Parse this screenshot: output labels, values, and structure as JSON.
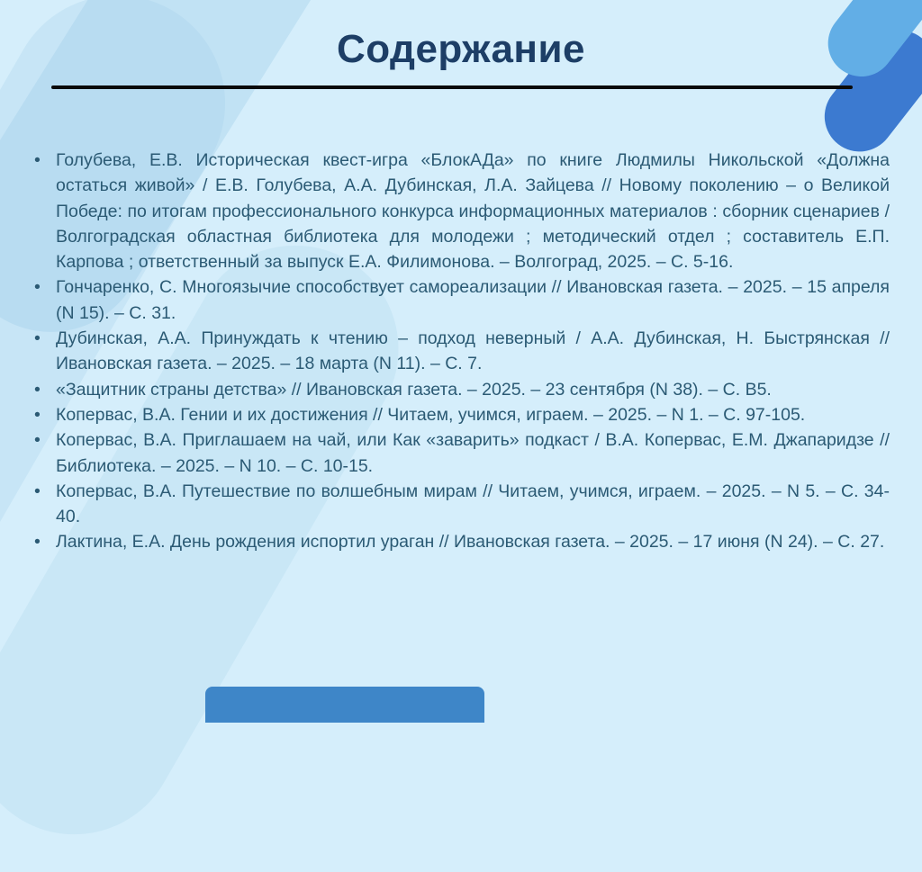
{
  "slide": {
    "title": "Содержание",
    "items": [
      "Голубева, Е.В. Историческая квест-игра «БлокАДа» по книге Людмилы Никольской «Должна остаться живой» / Е.В. Голубева, А.А. Дубинская, Л.А. Зайцева // Новому поколению – о Великой Победе: по итогам профессионального конкурса информационных материалов : сборник сценариев / Волгоградская областная библиотека для молодежи ; методический отдел ; составитель Е.П. Карпова ; ответственный за выпуск Е.А. Филимонова. – Волгоград, 2025. – С. 5-16.",
      "Гончаренко, С. Многоязычие способствует самореализации // Ивановская газета. – 2025. – 15 апреля (N 15). – С. 31.",
      "Дубинская, А.А. Принуждать к чтению – подход неверный / А.А. Дубинская, Н. Быстрянская // Ивановская газета. – 2025. – 18 марта (N 11). – С. 7.",
      "«Защитник страны детства» // Ивановская газета. – 2025. – 23 сентября (N 38). – С. В5.",
      "Копервас, В.А. Гении и их достижения // Читаем, учимся, играем. – 2025. – N 1. – С. 97-105.",
      "Копервас, В.А. Приглашаем на чай, или Как «заварить» подкаст / В.А. Копервас, Е.М. Джапаридзе // Библиотека. – 2025. – N 10. – С. 10-15.",
      "Копервас, В.А. Путешествие по волшебным мирам // Читаем, учимся, играем. – 2025. – N 5. – С. 34-40.",
      "Лактина, Е.А. День рождения испортил ураган // Ивановская газета. – 2025. – 17 июня (N 24). – С. 27."
    ]
  },
  "colors": {
    "background": "#d5eefb",
    "title_text": "#1d3e66",
    "body_text": "#2b5a74",
    "divider": "#0a0a0a",
    "accent_sky_blue": "#62aee6",
    "accent_royal_blue": "#3c7ad0",
    "bottom_strip_blue": "#3e86c8",
    "band_blue": "#96c8e4"
  }
}
